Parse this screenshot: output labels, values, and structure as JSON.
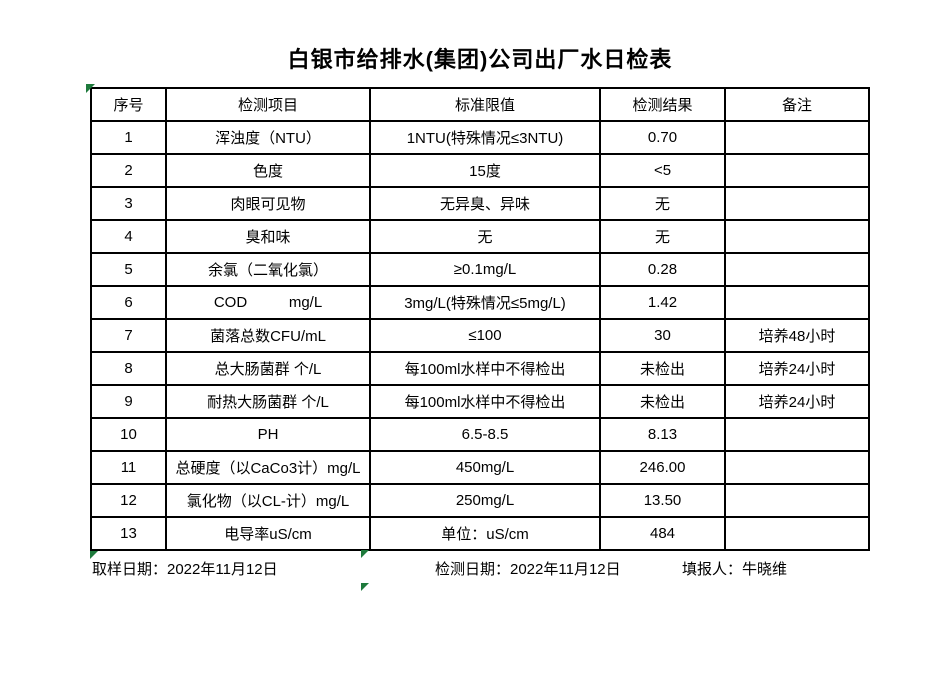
{
  "title": "白银市给排水(集团)公司出厂水日检表",
  "table": {
    "headers": [
      "序号",
      "检测项目",
      "标准限值",
      "检测结果",
      "备注"
    ],
    "rows": [
      [
        "1",
        "浑浊度（NTU）",
        "1NTU(特殊情况≤3NTU)",
        "0.70",
        ""
      ],
      [
        "2",
        "色度",
        "15度",
        "<5",
        ""
      ],
      [
        "3",
        "肉眼可见物",
        "无异臭、异味",
        "无",
        ""
      ],
      [
        "4",
        "臭和味",
        "无",
        "无",
        ""
      ],
      [
        "5",
        "余氯（二氧化氯）",
        "≥0.1mg/L",
        "0.28",
        ""
      ],
      [
        "6",
        "COD          mg/L",
        "3mg/L(特殊情况≤5mg/L)",
        "1.42",
        ""
      ],
      [
        "7",
        "菌落总数CFU/mL",
        "≤100",
        "30",
        "培养48小时"
      ],
      [
        "8",
        "总大肠菌群 个/L",
        "每100ml水样中不得检出",
        "未检出",
        "培养24小时"
      ],
      [
        "9",
        "耐热大肠菌群 个/L",
        "每100ml水样中不得检出",
        "未检出",
        "培养24小时"
      ],
      [
        "10",
        "PH",
        "6.5-8.5",
        "8.13",
        ""
      ],
      [
        "11",
        "总硬度（以CaCo3计）mg/L",
        "450mg/L",
        "246.00",
        ""
      ],
      [
        "12",
        "氯化物（以CL-计）mg/L",
        "250mg/L",
        "13.50",
        ""
      ],
      [
        "13",
        "电导率uS/cm",
        "单位：uS/cm",
        "484",
        ""
      ]
    ]
  },
  "footer": {
    "sampling_date": "取样日期：2022年11月12日",
    "testing_date": "检测日期：2022年11月12日",
    "reporter": "填报人：牛晓维"
  },
  "marker_color": "#1e7a3c"
}
